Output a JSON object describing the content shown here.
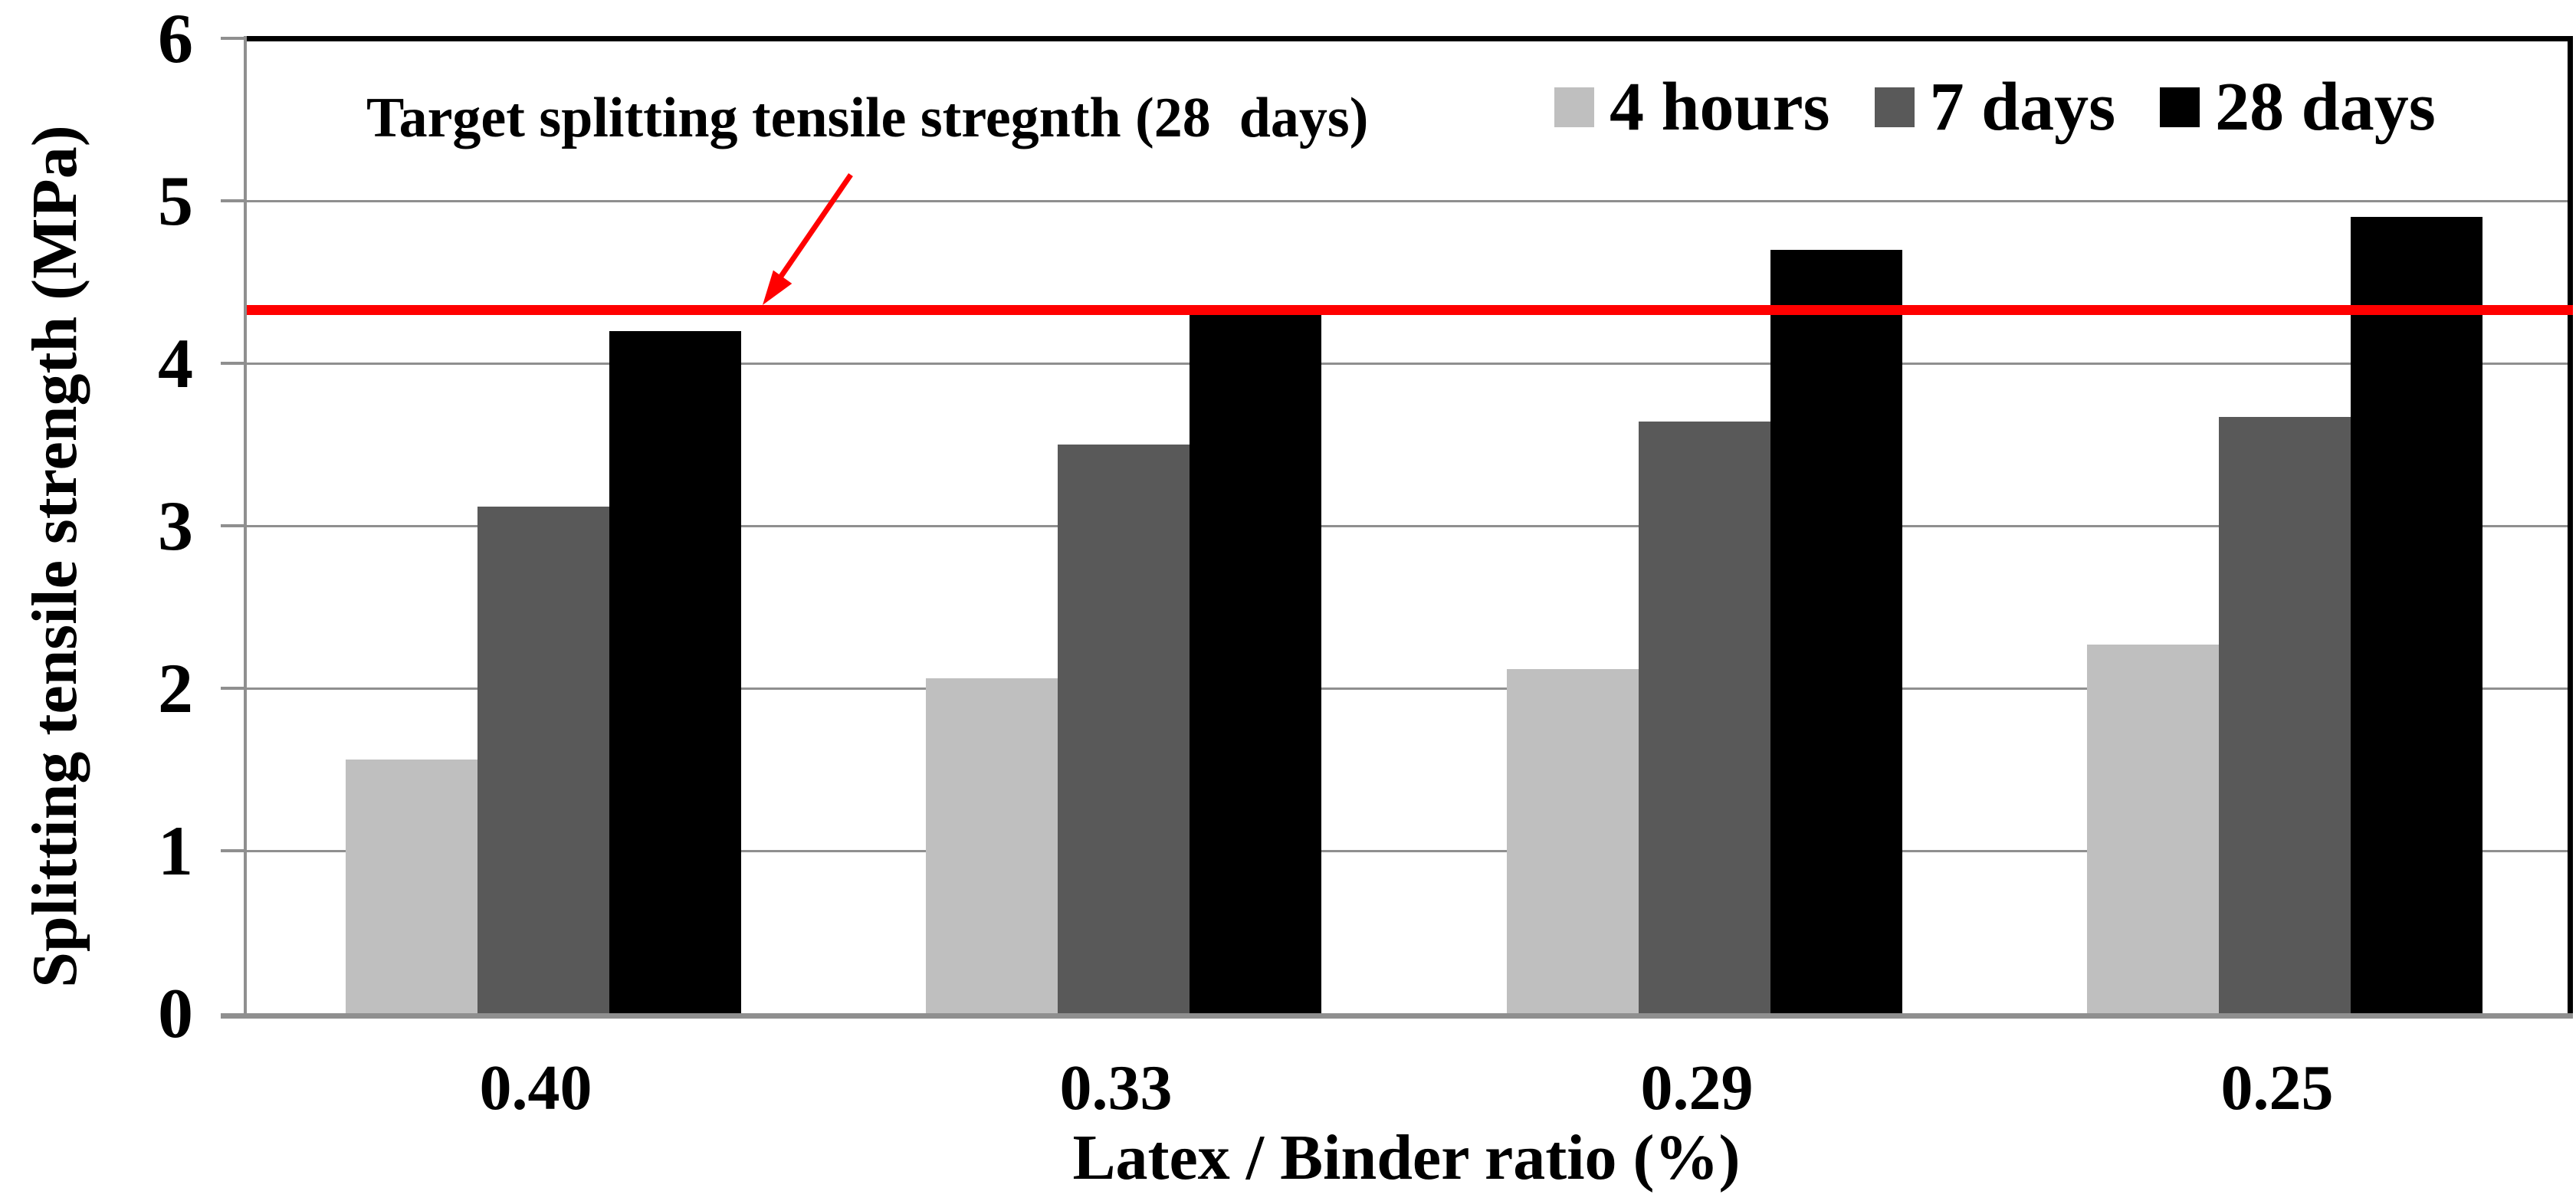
{
  "chart_data": {
    "type": "bar",
    "categories": [
      "0.40",
      "0.33",
      "0.29",
      "0.25"
    ],
    "series": [
      {
        "name": "4 hours",
        "color": "#bfbfbf",
        "values": [
          1.56,
          2.06,
          2.12,
          2.27
        ]
      },
      {
        "name": "7 days",
        "color": "#595959",
        "values": [
          3.12,
          3.5,
          3.64,
          3.67
        ]
      },
      {
        "name": "28 days",
        "color": "#000000",
        "values": [
          4.2,
          4.3,
          4.7,
          4.9
        ]
      }
    ],
    "xlabel": "Latex / Binder ratio (%)",
    "ylabel": "Splitting tensile strength (MPa)",
    "ylim": [
      0,
      6
    ],
    "yticks": [
      0,
      1,
      2,
      3,
      4,
      5,
      6
    ],
    "grid": true,
    "legend_position": "top-right",
    "target_line": {
      "value": 4.33,
      "color": "#ff0000",
      "label": "Target splitting tensile stregnth (28  days)"
    },
    "colors": {
      "plot_border": "#000000",
      "axis_line": "#8f8f8f",
      "gridline": "#8f8f8f",
      "background": "#ffffff"
    }
  }
}
